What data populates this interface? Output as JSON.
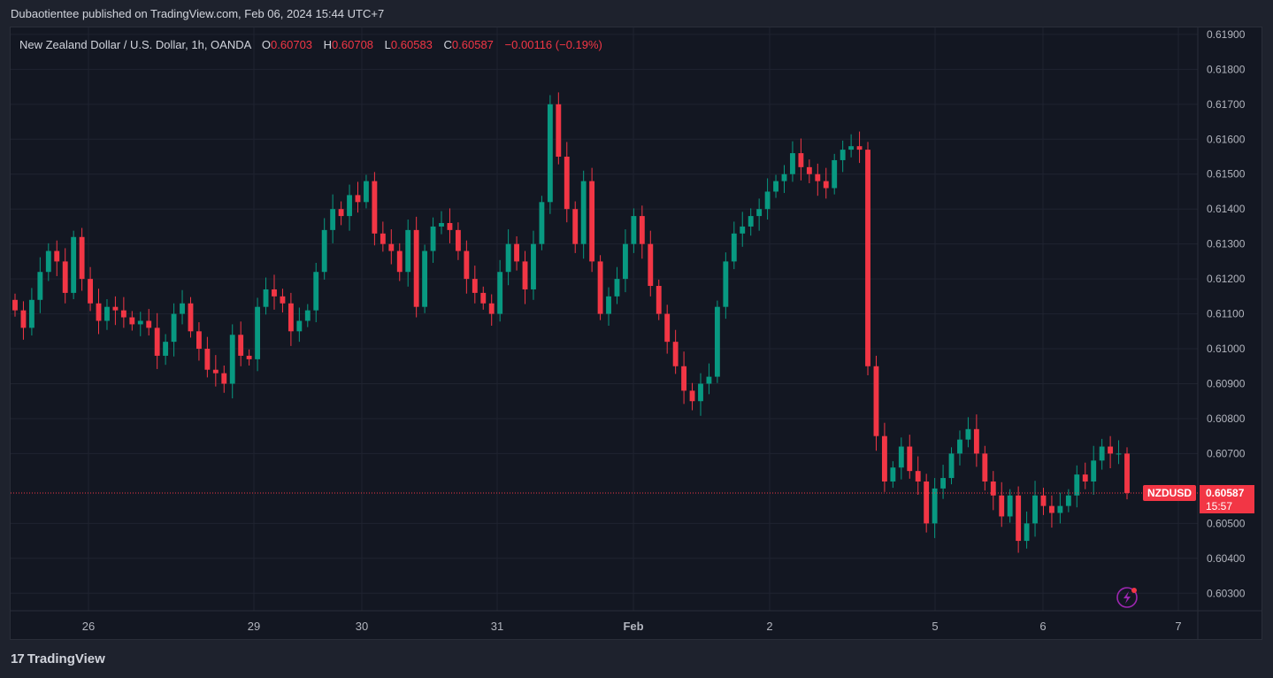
{
  "header": {
    "text": "Dubaotientee published on TradingView.com, Feb 06, 2024 15:44 UTC+7"
  },
  "legend": {
    "symbol": "New Zealand Dollar / U.S. Dollar, 1h, OANDA",
    "open_label": "O",
    "open": "0.60703",
    "high_label": "H",
    "high": "0.60708",
    "low_label": "L",
    "low": "0.60583",
    "close_label": "C",
    "close": "0.60587",
    "change": "−0.00116 (−0.19%)"
  },
  "price_tag": {
    "ticker": "NZDUSD",
    "price": "0.60587",
    "countdown": "15:57"
  },
  "footer": {
    "brand": "TradingView"
  },
  "colors": {
    "up": "#089981",
    "down": "#f23645",
    "background": "#131722",
    "grid": "#1f2330",
    "text": "#d1d4dc"
  },
  "chart_data": {
    "type": "candlestick",
    "symbol": "NZDUSD",
    "timeframe": "1h",
    "y_axis": {
      "ticks": [
        "0.61900",
        "0.61800",
        "0.61700",
        "0.61600",
        "0.61500",
        "0.61400",
        "0.61300",
        "0.61200",
        "0.61100",
        "0.61000",
        "0.60900",
        "0.60800",
        "0.60700",
        "0.60500",
        "0.60400",
        "0.60300"
      ],
      "range": [
        0.6025,
        0.6192
      ]
    },
    "x_axis": {
      "labels": [
        "26",
        "29",
        "30",
        "31",
        "Feb",
        "2",
        "5",
        "6",
        "7"
      ]
    },
    "last_price": 0.60587,
    "price_path": [
      [
        0,
        0.6111
      ],
      [
        1,
        0.6106
      ],
      [
        2,
        0.6114
      ],
      [
        3,
        0.6122
      ],
      [
        4,
        0.6128
      ],
      [
        5,
        0.6125
      ],
      [
        6,
        0.6116
      ],
      [
        7,
        0.6132
      ],
      [
        8,
        0.612
      ],
      [
        9,
        0.6113
      ],
      [
        10,
        0.6108
      ],
      [
        11,
        0.6112
      ],
      [
        12,
        0.6111
      ],
      [
        13,
        0.6109
      ],
      [
        14,
        0.6107
      ],
      [
        15,
        0.6108
      ],
      [
        16,
        0.6106
      ],
      [
        17,
        0.6098
      ],
      [
        18,
        0.6102
      ],
      [
        19,
        0.611
      ],
      [
        20,
        0.6113
      ],
      [
        21,
        0.6105
      ],
      [
        22,
        0.61
      ],
      [
        23,
        0.6094
      ],
      [
        24,
        0.6093
      ],
      [
        25,
        0.609
      ],
      [
        26,
        0.6104
      ],
      [
        27,
        0.6098
      ],
      [
        28,
        0.6097
      ],
      [
        29,
        0.6112
      ],
      [
        30,
        0.6117
      ],
      [
        31,
        0.6115
      ],
      [
        32,
        0.6113
      ],
      [
        33,
        0.6105
      ],
      [
        34,
        0.6108
      ],
      [
        35,
        0.6111
      ],
      [
        36,
        0.6122
      ],
      [
        37,
        0.6134
      ],
      [
        38,
        0.614
      ],
      [
        39,
        0.6138
      ],
      [
        40,
        0.6144
      ],
      [
        41,
        0.6142
      ],
      [
        42,
        0.6148
      ],
      [
        43,
        0.6133
      ],
      [
        44,
        0.613
      ],
      [
        45,
        0.6128
      ],
      [
        46,
        0.6122
      ],
      [
        47,
        0.6134
      ],
      [
        48,
        0.6112
      ],
      [
        49,
        0.6128
      ],
      [
        50,
        0.6135
      ],
      [
        51,
        0.6136
      ],
      [
        52,
        0.6134
      ],
      [
        53,
        0.6128
      ],
      [
        54,
        0.612
      ],
      [
        55,
        0.6116
      ],
      [
        56,
        0.6113
      ],
      [
        57,
        0.611
      ],
      [
        58,
        0.6122
      ],
      [
        59,
        0.613
      ],
      [
        60,
        0.6125
      ],
      [
        61,
        0.6117
      ],
      [
        62,
        0.613
      ],
      [
        63,
        0.6142
      ],
      [
        64,
        0.617
      ],
      [
        65,
        0.6155
      ],
      [
        66,
        0.614
      ],
      [
        67,
        0.613
      ],
      [
        68,
        0.6148
      ],
      [
        69,
        0.6125
      ],
      [
        70,
        0.611
      ],
      [
        71,
        0.6115
      ],
      [
        72,
        0.612
      ],
      [
        73,
        0.613
      ],
      [
        74,
        0.6138
      ],
      [
        75,
        0.613
      ],
      [
        76,
        0.6118
      ],
      [
        77,
        0.611
      ],
      [
        78,
        0.6102
      ],
      [
        79,
        0.6095
      ],
      [
        80,
        0.6088
      ],
      [
        81,
        0.6085
      ],
      [
        82,
        0.609
      ],
      [
        83,
        0.6092
      ],
      [
        84,
        0.6112
      ],
      [
        85,
        0.6125
      ],
      [
        86,
        0.6133
      ],
      [
        87,
        0.6135
      ],
      [
        88,
        0.6138
      ],
      [
        89,
        0.614
      ],
      [
        90,
        0.6145
      ],
      [
        91,
        0.6148
      ],
      [
        92,
        0.615
      ],
      [
        93,
        0.6156
      ],
      [
        94,
        0.6152
      ],
      [
        95,
        0.615
      ],
      [
        96,
        0.6148
      ],
      [
        97,
        0.6146
      ],
      [
        98,
        0.6154
      ],
      [
        99,
        0.6157
      ],
      [
        100,
        0.6158
      ],
      [
        101,
        0.6157
      ],
      [
        102,
        0.6095
      ],
      [
        103,
        0.6075
      ],
      [
        104,
        0.6062
      ],
      [
        105,
        0.6066
      ],
      [
        106,
        0.6072
      ],
      [
        107,
        0.6065
      ],
      [
        108,
        0.6062
      ],
      [
        109,
        0.605
      ],
      [
        110,
        0.606
      ],
      [
        111,
        0.6063
      ],
      [
        112,
        0.607
      ],
      [
        113,
        0.6074
      ],
      [
        114,
        0.6077
      ],
      [
        115,
        0.607
      ],
      [
        116,
        0.6062
      ],
      [
        117,
        0.6058
      ],
      [
        118,
        0.6052
      ],
      [
        119,
        0.6058
      ],
      [
        120,
        0.6045
      ],
      [
        121,
        0.605
      ],
      [
        122,
        0.6058
      ],
      [
        123,
        0.6055
      ],
      [
        124,
        0.6053
      ],
      [
        125,
        0.6055
      ],
      [
        126,
        0.6058
      ],
      [
        127,
        0.6064
      ],
      [
        128,
        0.6062
      ],
      [
        129,
        0.6068
      ],
      [
        130,
        0.6072
      ],
      [
        131,
        0.607
      ],
      [
        132,
        0.607
      ],
      [
        133,
        0.60587
      ]
    ]
  }
}
